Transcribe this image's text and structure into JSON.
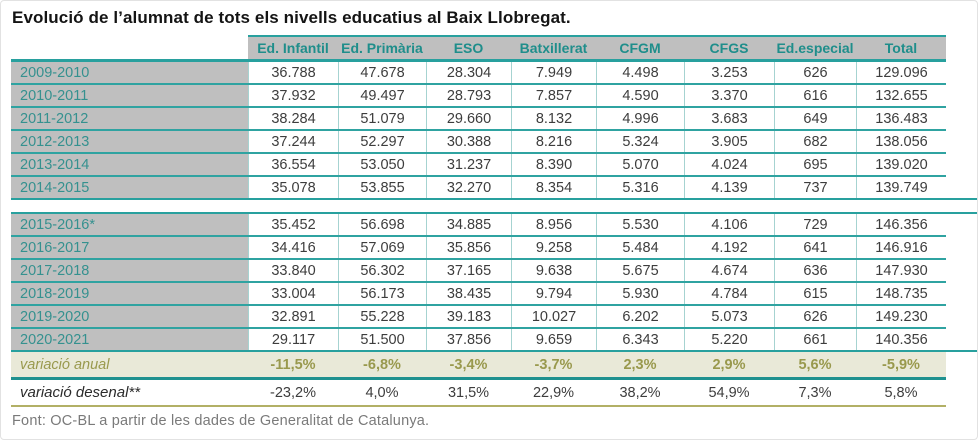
{
  "title": "Evolució de l’alumnat de tots els nivells educatius al Baix Llobregat.",
  "footer": "Font: OC-BL a partir de les dades de Generalitat de Catalunya.",
  "colors": {
    "teal_border": "#28a09e",
    "teal_header_text": "#1f8e8b",
    "gray_cell_bg": "#bfbfbf",
    "olive_row_bg": "#e9e9d8",
    "olive_text": "#99994d",
    "khaki_border": "#b2b066",
    "value_text": "#3d3d3d"
  },
  "table": {
    "columns": [
      "Ed. Infantil",
      "Ed. Primària",
      "ESO",
      "Batxillerat",
      "CFGM",
      "CFGS",
      "Ed.especial",
      "Total"
    ],
    "sections": [
      {
        "rows": [
          {
            "label": "2009-2010",
            "values": [
              "36.788",
              "47.678",
              "28.304",
              "7.949",
              "4.498",
              "3.253",
              "626",
              "129.096"
            ]
          },
          {
            "label": "2010-2011",
            "values": [
              "37.932",
              "49.497",
              "28.793",
              "7.857",
              "4.590",
              "3.370",
              "616",
              "132.655"
            ]
          },
          {
            "label": "2011-2012",
            "values": [
              "38.284",
              "51.079",
              "29.660",
              "8.132",
              "4.996",
              "3.683",
              "649",
              "136.483"
            ]
          },
          {
            "label": "2012-2013",
            "values": [
              "37.244",
              "52.297",
              "30.388",
              "8.216",
              "5.324",
              "3.905",
              "682",
              "138.056"
            ]
          },
          {
            "label": "2013-2014",
            "values": [
              "36.554",
              "53.050",
              "31.237",
              "8.390",
              "5.070",
              "4.024",
              "695",
              "139.020"
            ]
          },
          {
            "label": "2014-2015",
            "values": [
              "35.078",
              "53.855",
              "32.270",
              "8.354",
              "5.316",
              "4.139",
              "737",
              "139.749"
            ]
          }
        ]
      },
      {
        "rows": [
          {
            "label": "2015-2016*",
            "values": [
              "35.452",
              "56.698",
              "34.885",
              "8.956",
              "5.530",
              "4.106",
              "729",
              "146.356"
            ]
          },
          {
            "label": "2016-2017",
            "values": [
              "34.416",
              "57.069",
              "35.856",
              "9.258",
              "5.484",
              "4.192",
              "641",
              "146.916"
            ]
          },
          {
            "label": "2017-2018",
            "values": [
              "33.840",
              "56.302",
              "37.165",
              "9.638",
              "5.675",
              "4.674",
              "636",
              "147.930"
            ]
          },
          {
            "label": "2018-2019",
            "values": [
              "33.004",
              "56.173",
              "38.435",
              "9.794",
              "5.930",
              "4.784",
              "615",
              "148.735"
            ]
          },
          {
            "label": "2019-2020",
            "values": [
              "32.891",
              "55.228",
              "39.183",
              "10.027",
              "6.202",
              "5.073",
              "626",
              "149.230"
            ]
          },
          {
            "label": "2020-2021",
            "values": [
              "29.117",
              "51.500",
              "37.856",
              "9.659",
              "6.343",
              "5.220",
              "661",
              "140.356"
            ]
          }
        ]
      }
    ],
    "summary_rows": [
      {
        "label": "variació anual",
        "style": "olive",
        "values": [
          "-11,5%",
          "-6,8%",
          "-3,4%",
          "-3,7%",
          "2,3%",
          "2,9%",
          "5,6%",
          "-5,9%"
        ]
      },
      {
        "label": "variació desenal**",
        "style": "plain",
        "values": [
          "-23,2%",
          "4,0%",
          "31,5%",
          "22,9%",
          "38,2%",
          "54,9%",
          "7,3%",
          "5,8%"
        ]
      }
    ]
  }
}
